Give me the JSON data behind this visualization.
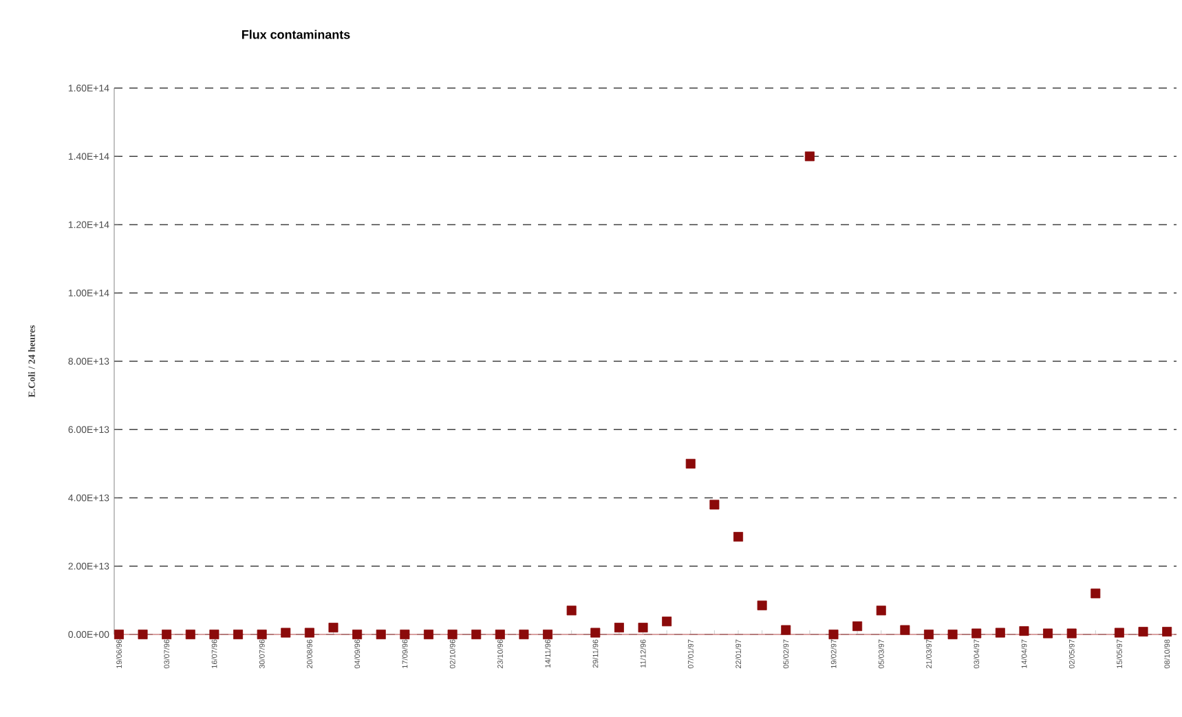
{
  "chart_data": {
    "type": "scatter",
    "title": "Flux contaminants",
    "ylabel": "E.Coli / 24 heures",
    "categories": [
      "19/06/96",
      null,
      "03/07/96",
      null,
      "16/07/96",
      null,
      "30/07/96",
      null,
      "20/08/96",
      null,
      "04/09/96",
      null,
      "17/09/96",
      null,
      "02/10/96",
      null,
      "23/10/96",
      null,
      "14/11/96",
      null,
      "29/11/96",
      null,
      "11/12/96",
      null,
      "07/01/97",
      null,
      "22/01/97",
      null,
      "05/02/97",
      null,
      "19/02/97",
      null,
      "05/03/97",
      null,
      "21/03/97",
      null,
      "03/04/97",
      null,
      "14/04/97",
      null,
      "02/05/97",
      null,
      "15/05/97",
      null,
      "08/10/98"
    ],
    "values": [
      0,
      0,
      0,
      0,
      0,
      0,
      0,
      500000000000.0,
      500000000000.0,
      2000000000000.0,
      0,
      0,
      0,
      0,
      0,
      0,
      0,
      0,
      0,
      7000000000000.0,
      500000000000.0,
      2000000000000.0,
      2000000000000.0,
      3800000000000.0,
      50000000000000.0,
      38000000000000.0,
      28600000000000.0,
      8500000000000.0,
      1300000000000.0,
      140000000000000.0,
      0,
      2400000000000.0,
      7000000000000.0,
      1300000000000.0,
      0,
      0,
      300000000000.0,
      500000000000.0,
      1000000000000.0,
      300000000000.0,
      300000000000.0,
      12000000000000.0,
      500000000000.0,
      800000000000.0,
      800000000000.0
    ],
    "color": "#8b0a0a",
    "marker": "square",
    "grid": "y",
    "ylim": [
      0,
      160000000000000.0
    ],
    "yticks": [
      {
        "value": 0,
        "label": "0.00E+00"
      },
      {
        "value": 20000000000000.0,
        "label": "2.00E+13"
      },
      {
        "value": 40000000000000.0,
        "label": "4.00E+13"
      },
      {
        "value": 60000000000000.0,
        "label": "6.00E+13"
      },
      {
        "value": 80000000000000.0,
        "label": "8.00E+13"
      },
      {
        "value": 100000000000000.0,
        "label": "1.00E+14"
      },
      {
        "value": 120000000000000.0,
        "label": "1.20E+14"
      },
      {
        "value": 140000000000000.0,
        "label": "1.40E+14"
      },
      {
        "value": 160000000000000.0,
        "label": "1.60E+14"
      }
    ]
  }
}
